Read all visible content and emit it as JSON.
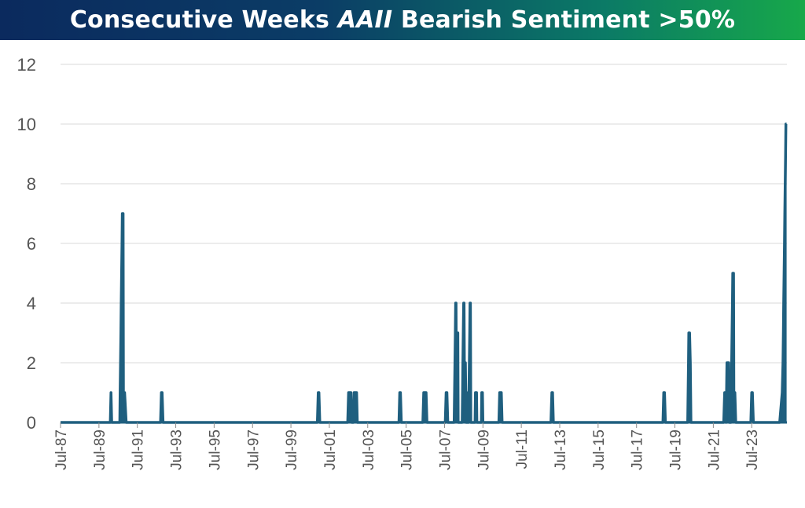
{
  "title": {
    "part1": "Consecutive Weeks ",
    "part2": "AAII",
    "part3": " Bearish Sentiment >50%"
  },
  "chart_data": {
    "type": "area",
    "title": "Consecutive Weeks AAII Bearish Sentiment >50%",
    "xlabel": "",
    "ylabel": "",
    "ylim": [
      0,
      12
    ],
    "yticks": [
      0,
      2,
      4,
      6,
      8,
      10,
      12
    ],
    "x_axis_type": "date",
    "xlim": [
      "1987-07",
      "2025-05"
    ],
    "xticks": [
      {
        "date": "1987-07",
        "label": "Jul-87"
      },
      {
        "date": "1989-07",
        "label": "Jul-89"
      },
      {
        "date": "1991-07",
        "label": "Jul-91"
      },
      {
        "date": "1993-07",
        "label": "Jul-93"
      },
      {
        "date": "1995-07",
        "label": "Jul-95"
      },
      {
        "date": "1997-07",
        "label": "Jul-97"
      },
      {
        "date": "1999-07",
        "label": "Jul-99"
      },
      {
        "date": "2001-07",
        "label": "Jul-01"
      },
      {
        "date": "2003-07",
        "label": "Jul-03"
      },
      {
        "date": "2005-07",
        "label": "Jul-05"
      },
      {
        "date": "2007-07",
        "label": "Jul-07"
      },
      {
        "date": "2009-07",
        "label": "Jul-09"
      },
      {
        "date": "2011-07",
        "label": "Jul-11"
      },
      {
        "date": "2013-07",
        "label": "Jul-13"
      },
      {
        "date": "2015-07",
        "label": "Jul-15"
      },
      {
        "date": "2017-07",
        "label": "Jul-17"
      },
      {
        "date": "2019-07",
        "label": "Jul-19"
      },
      {
        "date": "2021-07",
        "label": "Jul-21"
      },
      {
        "date": "2023-07",
        "label": "Jul-23"
      }
    ],
    "grid": true,
    "color": "#1f5f7f",
    "series": [
      {
        "points": [
          [
            "1987-07-01",
            0
          ],
          [
            "1990-02-01",
            0
          ],
          [
            "1990-02-15",
            1
          ],
          [
            "1990-03-01",
            0
          ],
          [
            "1990-08-01",
            0
          ],
          [
            "1990-08-08",
            1
          ],
          [
            "1990-08-15",
            2
          ],
          [
            "1990-08-22",
            3
          ],
          [
            "1990-08-29",
            4
          ],
          [
            "1990-09-05",
            5
          ],
          [
            "1990-09-12",
            6
          ],
          [
            "1990-09-19",
            7
          ],
          [
            "1990-10-03",
            7
          ],
          [
            "1990-10-10",
            1
          ],
          [
            "1990-11-01",
            1
          ],
          [
            "1990-12-01",
            0
          ],
          [
            "1992-09-15",
            0
          ],
          [
            "1992-10-01",
            1
          ],
          [
            "1992-10-15",
            1
          ],
          [
            "1992-11-01",
            0
          ],
          [
            "2000-11-15",
            0
          ],
          [
            "2000-12-01",
            1
          ],
          [
            "2000-12-15",
            1
          ],
          [
            "2001-01-01",
            0
          ],
          [
            "2002-06-15",
            0
          ],
          [
            "2002-07-01",
            1
          ],
          [
            "2002-08-15",
            1
          ],
          [
            "2002-09-01",
            0
          ],
          [
            "2002-10-01",
            0
          ],
          [
            "2002-10-15",
            1
          ],
          [
            "2002-12-01",
            1
          ],
          [
            "2002-12-15",
            0
          ],
          [
            "2005-02-15",
            0
          ],
          [
            "2005-03-01",
            1
          ],
          [
            "2005-03-15",
            1
          ],
          [
            "2005-04-01",
            0
          ],
          [
            "2006-05-15",
            0
          ],
          [
            "2006-06-01",
            1
          ],
          [
            "2006-07-15",
            1
          ],
          [
            "2006-08-01",
            0
          ],
          [
            "2007-07-15",
            0
          ],
          [
            "2007-08-01",
            1
          ],
          [
            "2007-08-15",
            1
          ],
          [
            "2007-09-01",
            0
          ],
          [
            "2008-01-01",
            0
          ],
          [
            "2008-01-08",
            1
          ],
          [
            "2008-01-15",
            2
          ],
          [
            "2008-01-22",
            3
          ],
          [
            "2008-01-29",
            4
          ],
          [
            "2008-02-05",
            4
          ],
          [
            "2008-02-12",
            1
          ],
          [
            "2008-02-19",
            2
          ],
          [
            "2008-02-26",
            3
          ],
          [
            "2008-03-10",
            3
          ],
          [
            "2008-03-17",
            0
          ],
          [
            "2008-06-01",
            0
          ],
          [
            "2008-06-08",
            1
          ],
          [
            "2008-06-15",
            2
          ],
          [
            "2008-06-22",
            3
          ],
          [
            "2008-06-29",
            4
          ],
          [
            "2008-07-06",
            4
          ],
          [
            "2008-07-13",
            2
          ],
          [
            "2008-08-01",
            2
          ],
          [
            "2008-08-15",
            0
          ],
          [
            "2008-08-25",
            1
          ],
          [
            "2008-09-05",
            0
          ],
          [
            "2008-10-01",
            0
          ],
          [
            "2008-10-08",
            1
          ],
          [
            "2008-10-15",
            2
          ],
          [
            "2008-10-22",
            3
          ],
          [
            "2008-10-29",
            4
          ],
          [
            "2008-11-05",
            4
          ],
          [
            "2008-11-12",
            0
          ],
          [
            "2009-02-01",
            0
          ],
          [
            "2009-02-08",
            1
          ],
          [
            "2009-03-01",
            1
          ],
          [
            "2009-03-08",
            0
          ],
          [
            "2009-06-01",
            0
          ],
          [
            "2009-06-08",
            1
          ],
          [
            "2009-06-22",
            1
          ],
          [
            "2009-07-01",
            0
          ],
          [
            "2010-05-01",
            0
          ],
          [
            "2010-05-15",
            1
          ],
          [
            "2010-06-15",
            1
          ],
          [
            "2010-07-01",
            0
          ],
          [
            "2013-01-15",
            0
          ],
          [
            "2013-02-01",
            1
          ],
          [
            "2013-02-15",
            1
          ],
          [
            "2013-03-01",
            0
          ],
          [
            "2018-11-15",
            0
          ],
          [
            "2018-12-01",
            1
          ],
          [
            "2018-12-15",
            1
          ],
          [
            "2019-01-01",
            0
          ],
          [
            "2020-03-01",
            0
          ],
          [
            "2020-03-08",
            1
          ],
          [
            "2020-03-15",
            2
          ],
          [
            "2020-03-22",
            3
          ],
          [
            "2020-04-05",
            3
          ],
          [
            "2020-04-19",
            2
          ],
          [
            "2020-05-01",
            0
          ],
          [
            "2022-01-15",
            0
          ],
          [
            "2022-02-01",
            1
          ],
          [
            "2022-02-15",
            1
          ],
          [
            "2022-03-01",
            0
          ],
          [
            "2022-03-10",
            1
          ],
          [
            "2022-03-17",
            2
          ],
          [
            "2022-04-20",
            2
          ],
          [
            "2022-05-01",
            0
          ],
          [
            "2022-06-01",
            0
          ],
          [
            "2022-06-08",
            1
          ],
          [
            "2022-06-15",
            2
          ],
          [
            "2022-06-22",
            3
          ],
          [
            "2022-06-29",
            4
          ],
          [
            "2022-07-06",
            5
          ],
          [
            "2022-07-20",
            5
          ],
          [
            "2022-07-27",
            1
          ],
          [
            "2022-08-15",
            1
          ],
          [
            "2022-09-01",
            0
          ],
          [
            "2023-06-15",
            0
          ],
          [
            "2023-07-01",
            1
          ],
          [
            "2023-07-15",
            1
          ],
          [
            "2023-08-01",
            0
          ],
          [
            "2024-12-15",
            0
          ],
          [
            "2025-02-01",
            1
          ],
          [
            "2025-02-15",
            2
          ],
          [
            "2025-02-22",
            3
          ],
          [
            "2025-03-01",
            4
          ],
          [
            "2025-03-08",
            5
          ],
          [
            "2025-03-15",
            6
          ],
          [
            "2025-03-22",
            7
          ],
          [
            "2025-03-29",
            8
          ],
          [
            "2025-04-05",
            9
          ],
          [
            "2025-04-12",
            10
          ],
          [
            "2025-04-25",
            10
          ]
        ]
      }
    ]
  }
}
